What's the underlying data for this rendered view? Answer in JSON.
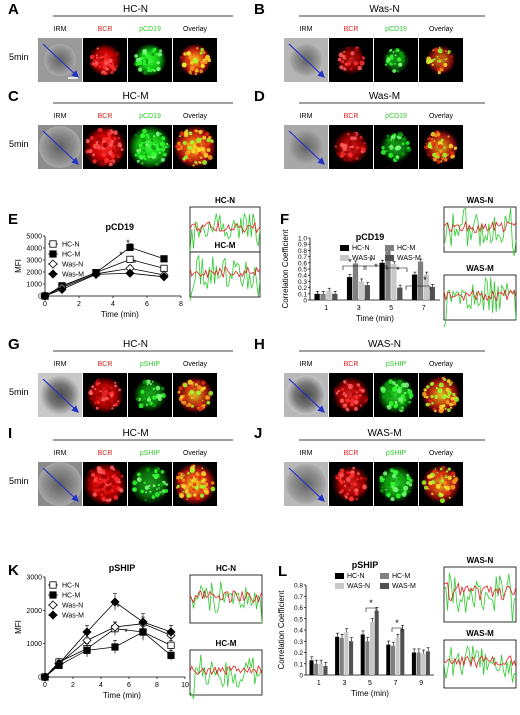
{
  "panels": {
    "A": {
      "letter": "A",
      "title": "HC-N",
      "time": "5min",
      "cols": [
        "IRM",
        "BCR",
        "pCD19",
        "Overlay"
      ]
    },
    "B": {
      "letter": "B",
      "title": "Was-N",
      "cols": [
        "IRM",
        "BCR",
        "pCD19",
        "Overlay"
      ]
    },
    "C": {
      "letter": "C",
      "title": "HC-M",
      "time": "5min",
      "cols": [
        "IRM",
        "BCR",
        "pCD19",
        "Overlay"
      ]
    },
    "D": {
      "letter": "D",
      "title": "Was-M",
      "cols": [
        "IRM",
        "BCR",
        "pCD19",
        "Overlay"
      ]
    },
    "E": {
      "letter": "E"
    },
    "F": {
      "letter": "F"
    },
    "G": {
      "letter": "G",
      "title": "HC-N",
      "time": "5min",
      "cols": [
        "IRM",
        "BCR",
        "pSHIP",
        "Overlay"
      ]
    },
    "H": {
      "letter": "H",
      "title": "WAS-N",
      "cols": [
        "IRM",
        "BCR",
        "pSHIP",
        "Overlay"
      ]
    },
    "I": {
      "letter": "I",
      "title": "HC-M",
      "time": "5min",
      "cols": [
        "IRM",
        "BCR",
        "pSHIP",
        "Overlay"
      ]
    },
    "J": {
      "letter": "J",
      "title": "WAS-M",
      "cols": [
        "IRM",
        "BCR",
        "pSHIP",
        "Overlay"
      ]
    },
    "K": {
      "letter": "K"
    },
    "L": {
      "letter": "L"
    }
  },
  "profiles": {
    "E_top": "HC-N",
    "E_bottom": "HC-M",
    "F_top": "WAS-N",
    "F_bottom": "WAS-M",
    "K_top": "HC-N",
    "K_bottom": "HC-M",
    "L_top": "WAS-N",
    "L_bottom": "WAS-M"
  },
  "colors": {
    "bcr": "#e02020",
    "marker": "#2ecc2e",
    "arrow": "#2233cc"
  },
  "chart_data": [
    {
      "id": "E",
      "type": "line",
      "title": "pCD19",
      "xlabel": "Time (min)",
      "ylabel": "MFI",
      "xlim": [
        0,
        8
      ],
      "ylim": [
        0,
        5000
      ],
      "xticks": [
        "0",
        "2",
        "4",
        "6",
        "8"
      ],
      "yticks": [
        "0",
        "1000",
        "2000",
        "3000",
        "4000",
        "5000"
      ],
      "x": [
        0,
        1,
        3,
        5,
        7
      ],
      "series": [
        {
          "name": "HC-N",
          "marker": "open-square",
          "values": [
            0,
            850,
            1950,
            3050,
            2300
          ]
        },
        {
          "name": "HC-M",
          "marker": "filled-square",
          "values": [
            0,
            800,
            1950,
            4050,
            3100
          ]
        },
        {
          "name": "Was-N",
          "marker": "open-diamond",
          "values": [
            0,
            700,
            1850,
            2300,
            1750
          ]
        },
        {
          "name": "Was-M",
          "marker": "filled-diamond",
          "values": [
            0,
            550,
            1800,
            1900,
            1600
          ]
        }
      ],
      "errors": [
        [
          0,
          120,
          150,
          250,
          200
        ],
        [
          0,
          120,
          150,
          300,
          250
        ],
        [
          0,
          100,
          150,
          250,
          200
        ],
        [
          0,
          100,
          150,
          200,
          200
        ]
      ],
      "annotations": [
        "*",
        "*",
        "*"
      ],
      "legend": "top-left"
    },
    {
      "id": "F",
      "type": "bar",
      "title": "pCD19",
      "xlabel": "Time (min)",
      "ylabel": "Correlation Coefficient",
      "ylim": [
        0,
        1.0
      ],
      "yticks": [
        "0",
        "0.1",
        "0.2",
        "0.3",
        "0.4",
        "0.5",
        "0.6",
        "0.7",
        "0.8",
        "0.9",
        "1.0"
      ],
      "categories": [
        "1",
        "3",
        "5",
        "7"
      ],
      "series": [
        {
          "name": "HC-N",
          "color": "#000000",
          "values": [
            0.1,
            0.37,
            0.6,
            0.41
          ]
        },
        {
          "name": "HC-M",
          "color": "#808080",
          "values": [
            0.1,
            0.59,
            0.79,
            0.62
          ]
        },
        {
          "name": "WAS-N",
          "color": "#c8c8c8",
          "values": [
            0.15,
            0.3,
            0.58,
            0.41
          ]
        },
        {
          "name": "WAS-M",
          "color": "#505050",
          "values": [
            0.1,
            0.24,
            0.2,
            0.21
          ]
        }
      ],
      "annotations": [
        "*",
        "*",
        "*",
        "*",
        "*",
        "*"
      ],
      "legend": "top"
    },
    {
      "id": "K",
      "type": "line",
      "title": "pSHIP",
      "xlabel": "Time (min)",
      "ylabel": "MFI",
      "xlim": [
        0,
        10
      ],
      "ylim": [
        0,
        3000
      ],
      "xticks": [
        "0",
        "2",
        "4",
        "6",
        "8",
        "10"
      ],
      "yticks": [
        "0",
        "1000",
        "2000",
        "3000"
      ],
      "x": [
        0,
        1,
        3,
        5,
        7,
        9
      ],
      "series": [
        {
          "name": "HC-N",
          "marker": "open-square",
          "values": [
            0,
            450,
            850,
            1450,
            1350,
            950
          ]
        },
        {
          "name": "HC-M",
          "marker": "filled-square",
          "values": [
            0,
            350,
            800,
            900,
            1350,
            650
          ]
        },
        {
          "name": "Was-N",
          "marker": "open-diamond",
          "values": [
            0,
            400,
            1100,
            1500,
            1600,
            1250
          ]
        },
        {
          "name": "Was-M",
          "marker": "filled-diamond",
          "values": [
            0,
            400,
            1350,
            2250,
            1650,
            1350
          ]
        }
      ],
      "errors": [
        [
          0,
          100,
          200,
          200,
          200,
          150
        ],
        [
          0,
          100,
          200,
          200,
          250,
          150
        ],
        [
          0,
          100,
          200,
          150,
          200,
          150
        ],
        [
          0,
          100,
          200,
          250,
          250,
          200
        ]
      ],
      "annotations": [
        "*",
        "*"
      ],
      "legend": "top-left"
    },
    {
      "id": "L",
      "type": "bar",
      "title": "pSHIP",
      "xlabel": "Time (min)",
      "ylabel": "Correlation Coefficient",
      "ylim": [
        0,
        0.8
      ],
      "yticks": [
        "0",
        "0.1",
        "0.2",
        "0.3",
        "0.4",
        "0.5",
        "0.6",
        "0.7",
        "0.8"
      ],
      "categories": [
        "1",
        "3",
        "5",
        "7",
        "9"
      ],
      "series": [
        {
          "name": "HC-N",
          "color": "#000000",
          "values": [
            0.13,
            0.34,
            0.36,
            0.27,
            0.2
          ]
        },
        {
          "name": "HC-M",
          "color": "#808080",
          "values": [
            0.1,
            0.33,
            0.3,
            0.26,
            0.2
          ]
        },
        {
          "name": "WAS-N",
          "color": "#c8c8c8",
          "values": [
            0.1,
            0.38,
            0.47,
            0.33,
            0.19
          ]
        },
        {
          "name": "WAS-M",
          "color": "#505050",
          "values": [
            0.08,
            0.3,
            0.57,
            0.41,
            0.21
          ]
        }
      ],
      "annotations": [
        "*",
        "*"
      ],
      "legend": "top"
    }
  ]
}
